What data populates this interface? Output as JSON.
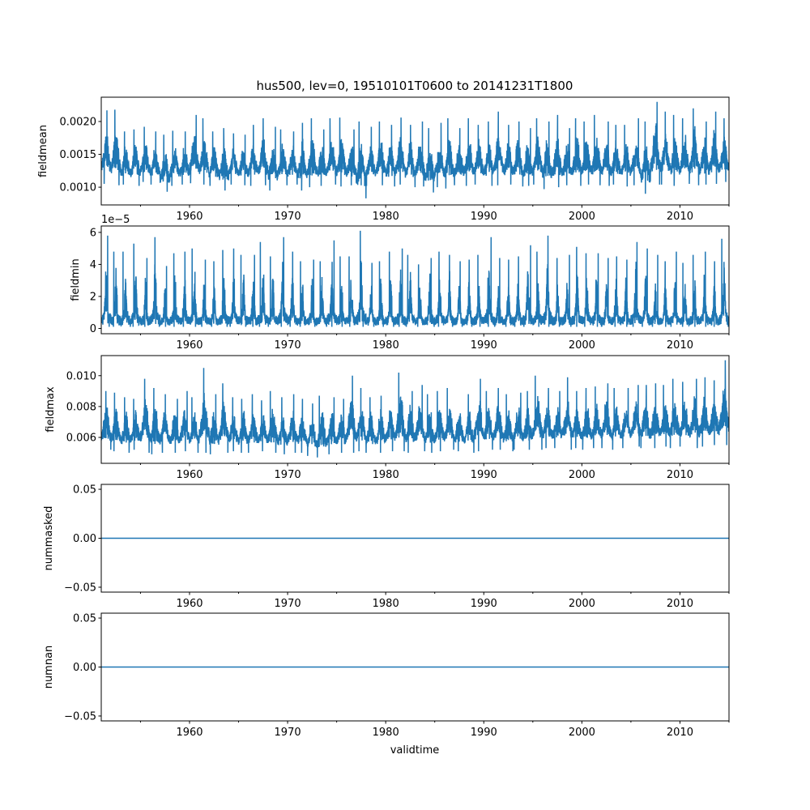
{
  "chart_data": {
    "type": "line",
    "title": "hus500, lev=0, 19510101T0600 to 20141231T1800",
    "xlabel": "validtime",
    "xlim": [
      1951,
      2015
    ],
    "xticks": [
      1960,
      1970,
      1980,
      1990,
      2000,
      2010
    ],
    "xtick_labels": [
      "1960",
      "1970",
      "1980",
      "1990",
      "2000",
      "2010"
    ],
    "color": "#1f77b4",
    "note_years": "annual envelope (max/min) per year 1951-2014 as read from the plot",
    "panels": [
      {
        "ylabel": "fieldmean",
        "ylim": [
          0.00073,
          0.00237
        ],
        "yticks": [
          0.001,
          0.0015,
          0.002
        ],
        "ytick_labels": [
          "0.0010",
          "0.0015",
          "0.0020"
        ],
        "offset_label": "",
        "annual_max": [
          0.00217,
          0.00218,
          0.00185,
          0.00188,
          0.00192,
          0.00185,
          0.0018,
          0.00186,
          0.00185,
          0.0021,
          0.00205,
          0.00185,
          0.0019,
          0.00182,
          0.0018,
          0.00195,
          0.00205,
          0.00192,
          0.00188,
          0.00185,
          0.00198,
          0.00205,
          0.00188,
          0.00205,
          0.00206,
          0.00188,
          0.002,
          0.00192,
          0.002,
          0.00195,
          0.00206,
          0.00195,
          0.002,
          0.0019,
          0.00198,
          0.00205,
          0.0019,
          0.00205,
          0.00195,
          0.002,
          0.00215,
          0.00195,
          0.002,
          0.0019,
          0.00205,
          0.002,
          0.0021,
          0.0019,
          0.00205,
          0.002,
          0.0021,
          0.002,
          0.00195,
          0.00195,
          0.00205,
          0.002,
          0.0023,
          0.00215,
          0.0021,
          0.00205,
          0.0022,
          0.002,
          0.00215,
          0.00205
        ],
        "annual_min": [
          0.00105,
          0.00103,
          0.00104,
          0.00102,
          0.00108,
          0.00104,
          0.00093,
          0.00102,
          0.00104,
          0.00106,
          0.00104,
          0.00102,
          0.00095,
          0.00104,
          0.00103,
          0.00102,
          0.00103,
          0.00095,
          0.00103,
          0.00104,
          0.00095,
          0.001,
          0.00102,
          0.00104,
          0.00101,
          0.00103,
          0.00083,
          0.00102,
          0.00103,
          0.00101,
          0.00104,
          0.001,
          0.00101,
          0.00092,
          0.001,
          0.00098,
          0.00103,
          0.00102,
          0.00104,
          0.00102,
          0.00103,
          0.00104,
          0.00101,
          0.00102,
          0.00104,
          0.00097,
          0.001,
          0.00103,
          0.00102,
          0.00104,
          0.00103,
          0.00102,
          0.00104,
          0.00101,
          0.00103,
          0.0009,
          0.00104,
          0.00104,
          0.00102,
          0.00105,
          0.00103,
          0.00104,
          0.00105,
          0.00108
        ]
      },
      {
        "ylabel": "fieldmin",
        "ylim": [
          -0.33,
          6.4
        ],
        "yticks": [
          0,
          2,
          4,
          6
        ],
        "ytick_labels": [
          "0",
          "2",
          "4",
          "6"
        ],
        "offset_label": "1e−5",
        "annual_max": [
          5.8,
          4.8,
          4.8,
          5.3,
          4.4,
          5.7,
          3.9,
          4.7,
          4.8,
          5.0,
          4.3,
          4.2,
          4.9,
          5.0,
          4.6,
          4.6,
          5.4,
          4.5,
          5.7,
          4.8,
          4.2,
          4.3,
          4.2,
          5.5,
          4.5,
          4.5,
          6.1,
          4.1,
          4.2,
          4.8,
          5.0,
          4.6,
          4.0,
          4.4,
          4.8,
          4.6,
          4.2,
          4.3,
          4.6,
          5.7,
          4.4,
          4.3,
          4.5,
          5.2,
          4.8,
          5.8,
          4.4,
          4.6,
          5.1,
          4.7,
          4.7,
          4.4,
          4.5,
          4.3,
          5.4,
          5.0,
          4.6,
          4.2,
          4.8,
          4.1,
          4.6,
          4.8,
          4.2,
          5.6
        ],
        "annual_min": [
          0.1,
          0.1,
          0.1,
          0.1,
          0.1,
          0.1,
          0.1,
          0.1,
          0.1,
          0.1,
          0.1,
          0.1,
          0.1,
          0.1,
          0.1,
          0.1,
          0.1,
          0.1,
          0.1,
          0.1,
          0.1,
          0.1,
          0.1,
          0.1,
          0.1,
          0.1,
          0.1,
          0.1,
          0.1,
          0.1,
          0.1,
          0.1,
          0.1,
          0.1,
          0.1,
          0.1,
          0.1,
          0.1,
          0.1,
          0.1,
          0.1,
          0.1,
          0.1,
          0.1,
          0.1,
          0.1,
          0.1,
          0.1,
          0.1,
          0.1,
          0.1,
          0.1,
          0.1,
          0.1,
          0.1,
          0.1,
          0.1,
          0.1,
          0.1,
          0.1,
          0.1,
          0.1,
          0.1,
          0.1
        ]
      },
      {
        "ylabel": "fieldmax",
        "ylim": [
          0.00432,
          0.0113
        ],
        "yticks": [
          0.006,
          0.008,
          0.01
        ],
        "ytick_labels": [
          "0.006",
          "0.008",
          "0.010"
        ],
        "offset_label": "",
        "annual_max": [
          0.009,
          0.0089,
          0.0086,
          0.0085,
          0.0098,
          0.0092,
          0.0088,
          0.0085,
          0.009,
          0.0086,
          0.0105,
          0.0088,
          0.0095,
          0.0086,
          0.0085,
          0.0088,
          0.0084,
          0.009,
          0.0086,
          0.0088,
          0.0085,
          0.0082,
          0.0087,
          0.0086,
          0.0085,
          0.01,
          0.0092,
          0.0086,
          0.0087,
          0.009,
          0.0102,
          0.009,
          0.0094,
          0.0088,
          0.009,
          0.0092,
          0.0086,
          0.0088,
          0.0098,
          0.009,
          0.0092,
          0.0088,
          0.0089,
          0.009,
          0.01,
          0.0092,
          0.009,
          0.0099,
          0.009,
          0.0092,
          0.0093,
          0.0095,
          0.0092,
          0.0092,
          0.0094,
          0.0094,
          0.0095,
          0.0094,
          0.0098,
          0.0096,
          0.0098,
          0.0099,
          0.0097,
          0.011
        ],
        "annual_min": [
          0.0052,
          0.0051,
          0.005,
          0.0052,
          0.005,
          0.0049,
          0.005,
          0.005,
          0.0051,
          0.005,
          0.005,
          0.0049,
          0.005,
          0.0051,
          0.005,
          0.005,
          0.0051,
          0.005,
          0.0049,
          0.005,
          0.005,
          0.0048,
          0.0047,
          0.0049,
          0.005,
          0.005,
          0.0051,
          0.005,
          0.005,
          0.0051,
          0.0051,
          0.005,
          0.0051,
          0.005,
          0.0051,
          0.0052,
          0.0051,
          0.005,
          0.0051,
          0.0052,
          0.0052,
          0.0051,
          0.0052,
          0.0052,
          0.0052,
          0.0053,
          0.0053,
          0.0052,
          0.0053,
          0.0052,
          0.0053,
          0.0053,
          0.0052,
          0.0053,
          0.0054,
          0.0053,
          0.0053,
          0.0054,
          0.0053,
          0.0054,
          0.0053,
          0.0054,
          0.0055,
          0.0055
        ]
      },
      {
        "ylabel": "nummasked",
        "ylim": [
          -0.055,
          0.055
        ],
        "yticks": [
          -0.05,
          0,
          0.05
        ],
        "ytick_labels": [
          "−0.05",
          "0.00",
          "0.05"
        ],
        "offset_label": "",
        "constant_value": 0
      },
      {
        "ylabel": "numnan",
        "ylim": [
          -0.055,
          0.055
        ],
        "yticks": [
          -0.05,
          0,
          0.05
        ],
        "ytick_labels": [
          "−0.05",
          "0.00",
          "0.05"
        ],
        "offset_label": "",
        "constant_value": 0
      }
    ]
  }
}
